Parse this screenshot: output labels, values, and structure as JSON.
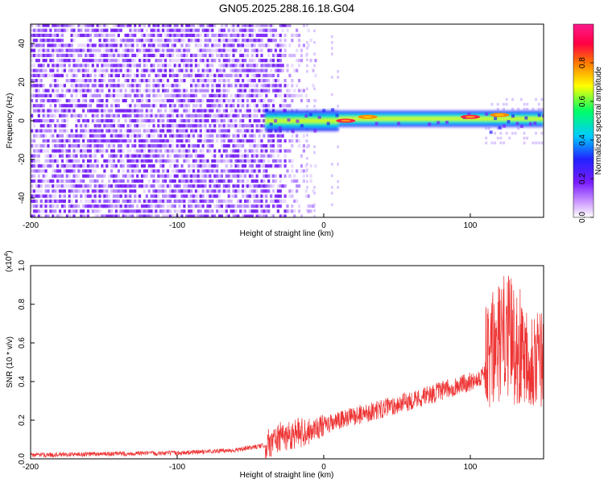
{
  "title": "GN05.2025.288.16.18.G04",
  "chart_data": [
    {
      "type": "heatmap",
      "xlabel": "Height of straight line (km)",
      "ylabel": "Frequency (Hz)",
      "xlim": [
        -200,
        150
      ],
      "ylim": [
        -50,
        50
      ],
      "xticks": [
        "-200",
        "-100",
        "0",
        "100"
      ],
      "yticks": [
        "-40",
        "-20",
        "0",
        "20",
        "40"
      ],
      "colorbar": {
        "label": "Normalized spectral amplitude",
        "range": [
          0,
          1
        ],
        "ticks": [
          "0.0",
          "0.2",
          "0.4",
          "0.6",
          "0.8"
        ],
        "colormap": [
          "#ffffff",
          "#cc99ff",
          "#7a1cff",
          "#2222ff",
          "#00ccff",
          "#00ff66",
          "#ffff00",
          "#ff7700",
          "#ff0044",
          "#ff1a8c"
        ]
      },
      "regions": [
        {
          "x": [
            -200,
            -40
          ],
          "description_level": 0.15
        },
        {
          "x": [
            -40,
            10
          ],
          "band_hz": [
            -5,
            5
          ],
          "level": 0.5
        },
        {
          "x": [
            10,
            150
          ],
          "band_hz": [
            -3,
            3
          ],
          "level": 0.6
        }
      ],
      "peaks": [
        {
          "x": 15,
          "y_hz": 0,
          "level": 0.9
        },
        {
          "x": 100,
          "y_hz": 2,
          "level": 0.9
        },
        {
          "x": 30,
          "y_hz": 2,
          "level": 0.8
        },
        {
          "x": 120,
          "y_hz": 3,
          "level": 0.8
        }
      ]
    },
    {
      "type": "line",
      "xlabel": "Height of straight line (km)",
      "ylabel": "SNR (10 * v/v)",
      "multiplier": "(x10",
      "multiplier_exp": "4",
      "multiplier_close": ")",
      "xlim": [
        -200,
        150
      ],
      "ylim": [
        0,
        1.0
      ],
      "xticks": [
        "-200",
        "-100",
        "0",
        "100"
      ],
      "yticks": [
        "0.0",
        "0.2",
        "0.4",
        "0.6",
        "0.8",
        "1.0"
      ],
      "series": [
        {
          "color": "#ee3333",
          "x": [
            -200,
            -150,
            -100,
            -60,
            -40,
            -30,
            -20,
            -10,
            0,
            20,
            50,
            80,
            100,
            108,
            115,
            125,
            130,
            140,
            150
          ],
          "y": [
            0.02,
            0.025,
            0.03,
            0.045,
            0.07,
            0.11,
            0.13,
            0.15,
            0.17,
            0.22,
            0.28,
            0.35,
            0.4,
            0.43,
            0.55,
            0.65,
            0.6,
            0.55,
            0.5
          ]
        }
      ]
    }
  ]
}
